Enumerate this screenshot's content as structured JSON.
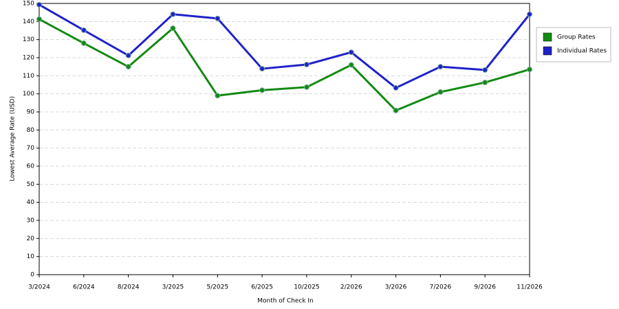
{
  "chart_data": {
    "type": "line",
    "x_label": "Month of Check In",
    "y_label": "Lowest Average Rate (USD)",
    "categories": [
      "3/2024",
      "6/2024",
      "8/2024",
      "3/2025",
      "5/2025",
      "6/2025",
      "10/2025",
      "2/2026",
      "3/2026",
      "7/2026",
      "9/2026",
      "11/2026"
    ],
    "series": [
      {
        "name": "Group Rates",
        "color": "#138a13",
        "values": [
          141.3,
          128,
          115,
          136.3,
          99,
          102,
          103.7,
          116,
          90.8,
          101,
          106.3,
          113.5
        ]
      },
      {
        "name": "Individual Rates",
        "color": "#1f22c8",
        "values": [
          149.3,
          135.2,
          121.2,
          144,
          141.7,
          113.9,
          116.2,
          123,
          103.3,
          115,
          113.2,
          144
        ]
      }
    ],
    "ylim": [
      0,
      150
    ],
    "yticks": [
      0,
      10,
      20,
      30,
      40,
      50,
      60,
      70,
      80,
      90,
      100,
      110,
      120,
      130,
      140,
      150
    ],
    "grid": true,
    "legend": "right"
  }
}
